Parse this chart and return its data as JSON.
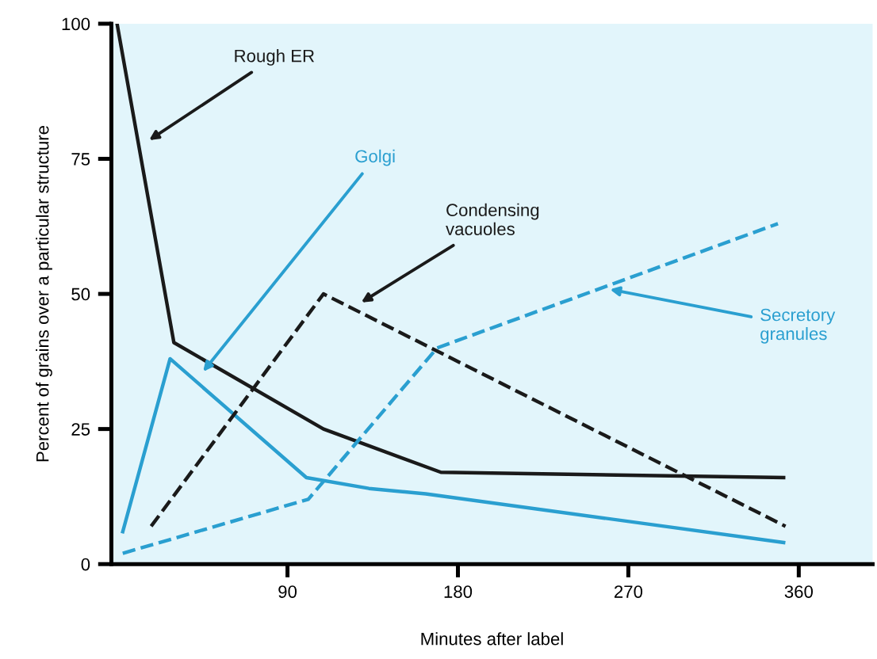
{
  "chart_data": {
    "type": "line",
    "xlabel": "Minutes after label",
    "ylabel": "Percent of grains over a particular structure",
    "xlim": [
      -3,
      399
    ],
    "ylim": [
      0,
      100
    ],
    "xticks": [
      90,
      180,
      270,
      360
    ],
    "yticks": [
      0,
      25,
      50,
      75,
      100
    ],
    "grid": false,
    "legend": false,
    "marker": "none",
    "series": [
      {
        "color": "#1a1a1a",
        "line_style": "solid",
        "x": [
          0,
          30,
          109,
          171,
          352
        ],
        "values": [
          100,
          41,
          25,
          17,
          16
        ]
      },
      {
        "color": "#2a9fd0",
        "line_style": "solid",
        "x": [
          3,
          28,
          100,
          133,
          163,
          352
        ],
        "values": [
          6,
          38,
          16,
          14,
          13,
          4
        ]
      },
      {
        "color": "#1a1a1a",
        "line_style": "dashed",
        "x": [
          18,
          109,
          353
        ],
        "values": [
          7,
          50,
          7
        ]
      },
      {
        "color": "#2a9fd0",
        "line_style": "dashed",
        "x": [
          3,
          101,
          169,
          349
        ],
        "values": [
          2,
          12,
          40,
          63
        ]
      }
    ],
    "annotations": [
      {
        "text": "Rough ER",
        "x": 15,
        "y": 78
      },
      {
        "text": "Golgi",
        "x": 44,
        "y": 35
      },
      {
        "text": "Condensing\nvacuoles",
        "x": 127,
        "y": 48
      },
      {
        "text": "Secretory\ngranules",
        "x": 258,
        "y": 51
      }
    ]
  }
}
